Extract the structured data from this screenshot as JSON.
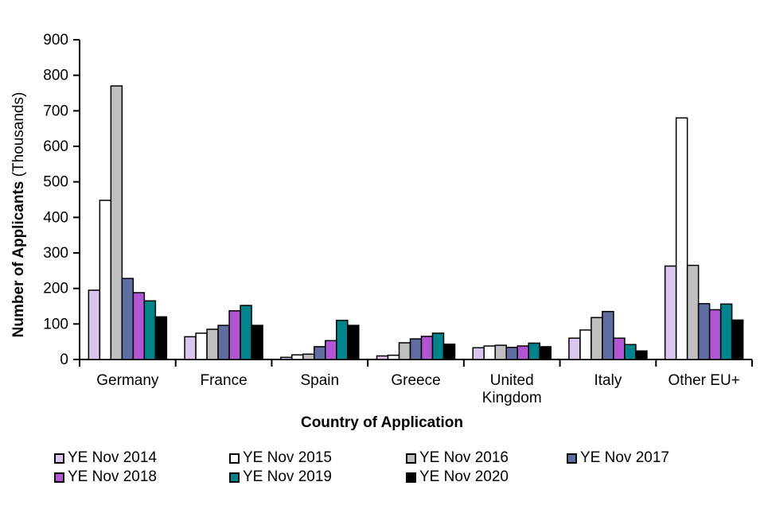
{
  "chart_data": {
    "type": "bar",
    "title": "",
    "xlabel": "Country of Application",
    "ylabel": "Number of Applicants",
    "ylabel_suffix": " (Thousands)",
    "ylim": [
      0,
      900
    ],
    "yticks": [
      0,
      100,
      200,
      300,
      400,
      500,
      600,
      700,
      800,
      900
    ],
    "grid": false,
    "legend_position": "bottom",
    "categories": [
      "Germany",
      "France",
      "Spain",
      "Greece",
      "United Kingdom",
      "Italy",
      "Other EU+"
    ],
    "categories_display": [
      [
        "Germany"
      ],
      [
        "France"
      ],
      [
        "Spain"
      ],
      [
        "Greece"
      ],
      [
        "United",
        "Kingdom"
      ],
      [
        "Italy"
      ],
      [
        "Other EU+"
      ]
    ],
    "series": [
      {
        "name": "YE Nov 2014",
        "color": "#d9c6ec",
        "values": [
          195,
          64,
          6,
          10,
          33,
          60,
          263
        ]
      },
      {
        "name": "YE Nov 2015",
        "color": "#ffffff",
        "values": [
          448,
          74,
          13,
          12,
          38,
          83,
          680
        ]
      },
      {
        "name": "YE Nov 2016",
        "color": "#bfbfbf",
        "values": [
          770,
          85,
          15,
          47,
          40,
          118,
          265
        ]
      },
      {
        "name": "YE Nov 2017",
        "color": "#5f6da1",
        "values": [
          228,
          96,
          36,
          58,
          34,
          135,
          157
        ]
      },
      {
        "name": "YE Nov 2018",
        "color": "#b156d2",
        "values": [
          188,
          137,
          53,
          65,
          38,
          60,
          140
        ]
      },
      {
        "name": "YE Nov 2019",
        "color": "#00838a",
        "values": [
          165,
          152,
          110,
          74,
          46,
          42,
          156
        ]
      },
      {
        "name": "YE Nov 2020",
        "color": "#000000",
        "values": [
          120,
          96,
          96,
          43,
          36,
          24,
          111
        ]
      }
    ],
    "axis_color": "#000000",
    "bar_outline_color": "#000000"
  }
}
